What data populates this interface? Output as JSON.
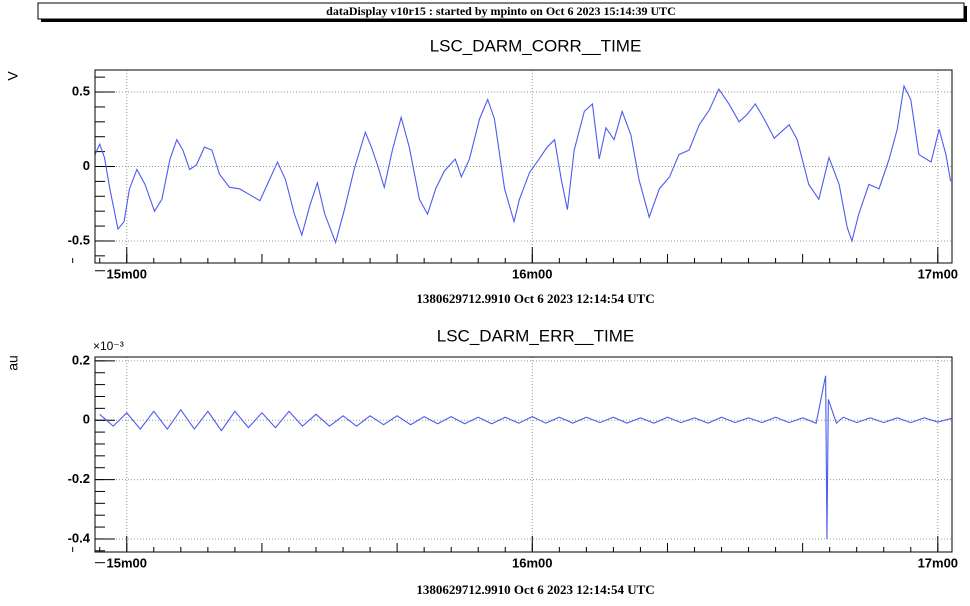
{
  "header": {
    "title": "dataDisplay v10r15 : started by mpinto on Oct  6 2023 15:14:39 UTC"
  },
  "chart_data": [
    {
      "type": "line",
      "title": "LSC_DARM_CORR__TIME",
      "ylabel": "V",
      "xlabel": "1380629712.9910 Oct 6 2023 12:14:54 UTC",
      "color": "#4d5cf0",
      "grid": true,
      "xlim": [
        895.3,
        1022.1
      ],
      "ylim": [
        -0.648,
        0.648
      ],
      "xticks": [
        {
          "value": 900,
          "label": "15m00"
        },
        {
          "value": 960,
          "label": "16m00"
        },
        {
          "value": 1020,
          "label": "17m00"
        }
      ],
      "yticks": [
        0.5,
        0,
        -0.5
      ],
      "x": [
        895.3,
        896.0,
        896.7,
        897.5,
        898.7,
        899.6,
        900.4,
        901.5,
        902.7,
        904.1,
        905.2,
        906.4,
        907.4,
        908.3,
        909.3,
        910.3,
        911.5,
        912.6,
        913.7,
        915.2,
        916.7,
        918.2,
        919.7,
        920.8,
        922.3,
        923.5,
        924.8,
        925.9,
        927.1,
        928.2,
        929.3,
        930.9,
        932.2,
        933.7,
        935.3,
        936.2,
        937.1,
        938.1,
        939.3,
        940.6,
        941.8,
        943.3,
        944.5,
        945.7,
        947.0,
        948.6,
        949.5,
        950.7,
        952.2,
        953.4,
        954.4,
        955.9,
        957.3,
        958.1,
        959.6,
        961.0,
        962.2,
        963.3,
        964.3,
        965.2,
        966.2,
        967.7,
        968.9,
        969.9,
        970.9,
        972.1,
        973.3,
        974.6,
        975.8,
        977.3,
        978.8,
        980.3,
        981.7,
        983.2,
        984.7,
        986.2,
        987.6,
        989.1,
        990.6,
        991.8,
        993.0,
        994.3,
        995.8,
        998.0,
        999.2,
        1000.9,
        1002.4,
        1003.9,
        1005.4,
        1006.6,
        1007.3,
        1008.3,
        1009.8,
        1011.3,
        1012.8,
        1014.0,
        1015.0,
        1016.0,
        1017.2,
        1019.0,
        1020.2,
        1021.2,
        1021.9
      ],
      "values": [
        0.08,
        0.15,
        0.06,
        -0.15,
        -0.42,
        -0.37,
        -0.15,
        -0.02,
        -0.12,
        -0.3,
        -0.22,
        0.05,
        0.18,
        0.11,
        -0.02,
        0.01,
        0.13,
        0.11,
        -0.05,
        -0.14,
        -0.15,
        -0.19,
        -0.23,
        -0.12,
        0.03,
        -0.09,
        -0.32,
        -0.46,
        -0.26,
        -0.11,
        -0.32,
        -0.51,
        -0.29,
        -0.01,
        0.23,
        0.13,
        0.01,
        -0.14,
        0.11,
        0.33,
        0.13,
        -0.22,
        -0.32,
        -0.15,
        -0.03,
        0.05,
        -0.07,
        0.05,
        0.32,
        0.45,
        0.32,
        -0.15,
        -0.37,
        -0.22,
        -0.04,
        0.05,
        0.13,
        0.18,
        -0.09,
        -0.29,
        0.11,
        0.37,
        0.42,
        0.05,
        0.26,
        0.18,
        0.37,
        0.21,
        -0.09,
        -0.34,
        -0.15,
        -0.07,
        0.08,
        0.11,
        0.28,
        0.38,
        0.52,
        0.42,
        0.3,
        0.35,
        0.42,
        0.32,
        0.19,
        0.28,
        0.18,
        -0.12,
        -0.22,
        0.06,
        -0.12,
        -0.41,
        -0.5,
        -0.32,
        -0.12,
        -0.15,
        0.05,
        0.25,
        0.54,
        0.45,
        0.08,
        0.03,
        0.25,
        0.08,
        -0.1
      ]
    },
    {
      "type": "line",
      "title": "LSC_DARM_ERR__TIME",
      "ylabel": "au",
      "y_scale_label": "×10⁻³",
      "xlabel": "1380629712.9910 Oct 6 2023 12:14:54 UTC",
      "color": "#4d5cf0",
      "grid": true,
      "xlim": [
        895.3,
        1022.1
      ],
      "ylim": [
        -0.444,
        0.213
      ],
      "xticks": [
        {
          "value": 900,
          "label": "15m00"
        },
        {
          "value": 960,
          "label": "16m00"
        },
        {
          "value": 1020,
          "label": "17m00"
        }
      ],
      "yticks": [
        0.2,
        0,
        -0.2,
        -0.4
      ],
      "x": [
        896,
        898,
        900,
        902,
        904,
        906,
        908,
        910,
        912,
        914,
        916,
        918,
        920,
        922,
        924,
        926,
        928,
        930,
        932,
        934,
        936,
        938,
        940,
        942,
        944,
        946,
        948,
        950,
        952,
        954,
        956,
        958,
        960,
        962,
        964,
        966,
        968,
        970,
        972,
        974,
        976,
        978,
        980,
        982,
        984,
        986,
        988,
        990,
        992,
        994,
        996,
        998,
        1000,
        1002,
        1003.4,
        1003.6,
        1003.8,
        1005,
        1006,
        1008,
        1010,
        1012,
        1014,
        1016,
        1018,
        1020,
        1022
      ],
      "values": [
        0.02,
        -0.02,
        0.025,
        -0.03,
        0.03,
        -0.03,
        0.035,
        -0.03,
        0.03,
        -0.035,
        0.03,
        -0.025,
        0.025,
        -0.025,
        0.03,
        -0.02,
        0.02,
        -0.02,
        0.015,
        -0.02,
        0.015,
        -0.015,
        0.015,
        -0.015,
        0.012,
        -0.012,
        0.012,
        -0.012,
        0.01,
        -0.012,
        0.01,
        -0.01,
        0.012,
        -0.01,
        0.01,
        -0.01,
        0.01,
        -0.008,
        0.01,
        -0.01,
        0.008,
        -0.01,
        0.01,
        -0.008,
        0.008,
        -0.01,
        0.01,
        -0.008,
        0.008,
        -0.008,
        0.01,
        -0.008,
        0.008,
        -0.01,
        0.15,
        -0.4,
        0.07,
        -0.01,
        0.01,
        -0.008,
        0.008,
        -0.008,
        0.008,
        -0.008,
        0.008,
        -0.006,
        0.006
      ]
    }
  ]
}
